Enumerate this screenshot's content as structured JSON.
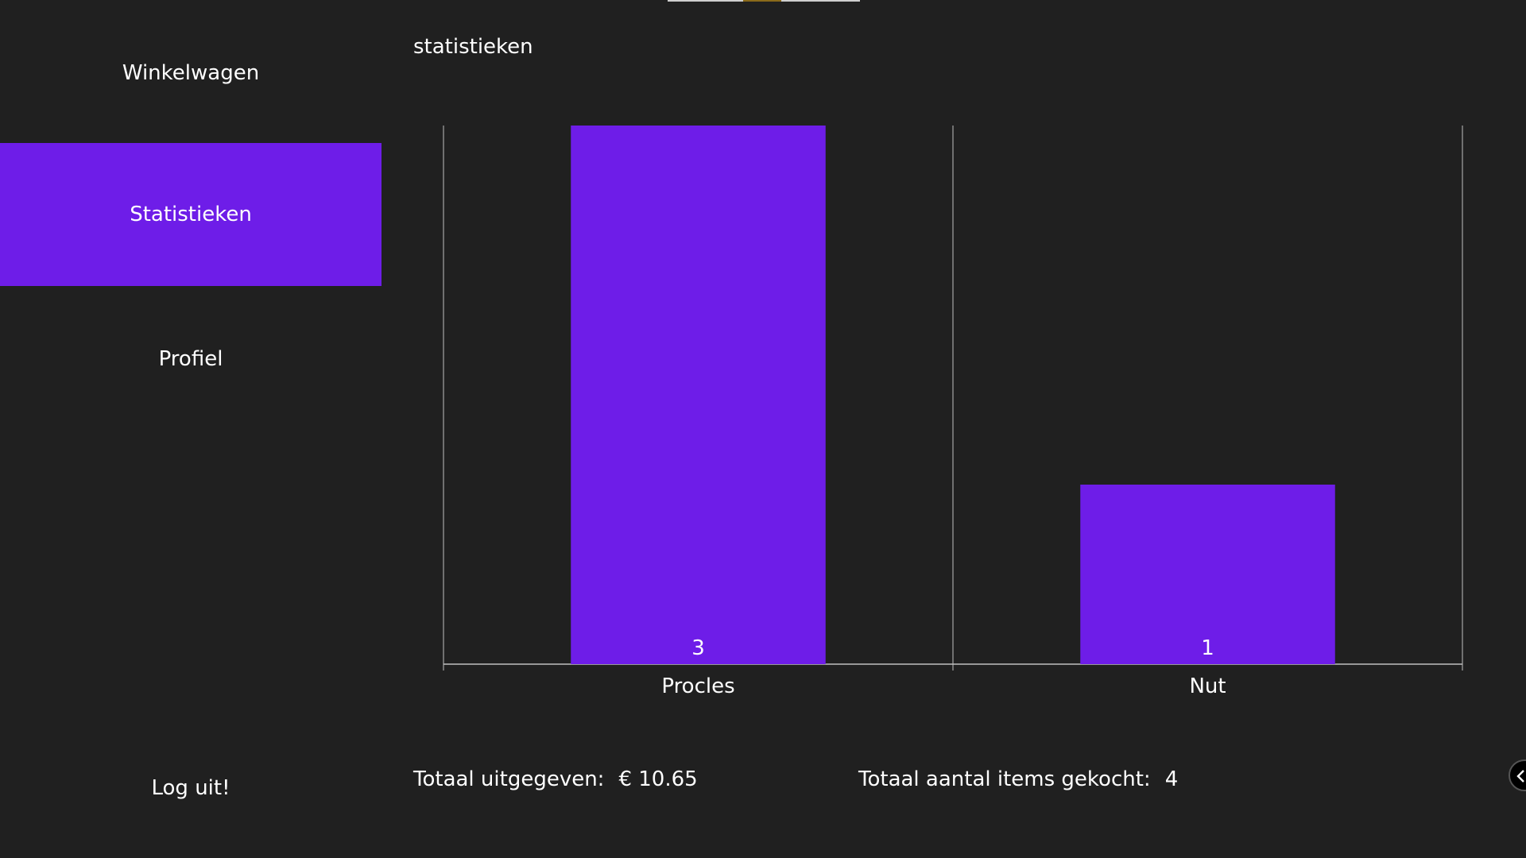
{
  "sidebar": {
    "items": [
      {
        "label": "Winkelwagen",
        "active": false
      },
      {
        "label": "Statistieken",
        "active": true
      },
      {
        "label": "Profiel",
        "active": false
      }
    ],
    "logout_label": "Log uit!"
  },
  "main": {
    "title": "statistieken"
  },
  "chart_data": {
    "type": "bar",
    "categories": [
      "Procles",
      "Nut"
    ],
    "values": [
      3,
      1
    ],
    "data_labels": [
      "3",
      "1"
    ],
    "title": "",
    "xlabel": "",
    "ylabel": "",
    "ylim": [
      0,
      3
    ],
    "grid": "vertical",
    "legend": "none",
    "bar_color": "#6e1de8",
    "axis_color": "#bfbfbf"
  },
  "totals": {
    "spent_label": "Totaal uitgegeven:",
    "spent_value": "€ 10.65",
    "items_label": "Totaal aantal items gekocht:",
    "items_value": "4"
  },
  "colors": {
    "background": "#202020",
    "accent": "#6e1de8",
    "text": "#ffffff"
  },
  "icons": {
    "side_handle": "chevron-left-icon"
  }
}
